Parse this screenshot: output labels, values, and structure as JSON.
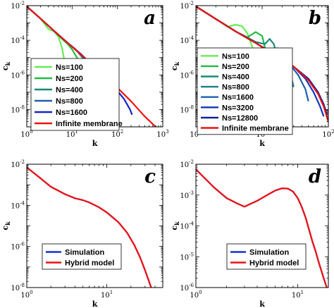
{
  "chart_data": [
    {
      "panel_label": "a",
      "type": "line",
      "xscale": "log",
      "yscale": "log",
      "xlim": [
        1,
        1000
      ],
      "ylim": [
        1e-09,
        0.01
      ],
      "xticks": [
        1,
        10,
        100,
        1000
      ],
      "yticks": [
        1e-08,
        1e-06,
        0.0001,
        0.01
      ],
      "xlabel": "k",
      "ylabel": "c_k",
      "legend_position": "lower-left",
      "series": [
        {
          "name": "Ns=100",
          "color": "#66ee55",
          "points": [
            [
              1,
              0.009
            ],
            [
              2,
              0.0018
            ],
            [
              3,
              0.00045
            ],
            [
              4,
              0.00032
            ],
            [
              5,
              0.00016
            ],
            [
              6,
              3.5e-05
            ],
            [
              7,
              4e-06
            ],
            [
              8,
              6e-07
            ],
            [
              9,
              1e-07
            ]
          ]
        },
        {
          "name": "Ns=200",
          "color": "#22bb44",
          "points": [
            [
              1,
              0.009
            ],
            [
              2,
              0.0018
            ],
            [
              4,
              0.00035
            ],
            [
              6,
              0.00012
            ],
            [
              8,
              6e-05
            ],
            [
              10,
              3e-05
            ],
            [
              13,
              9e-06
            ],
            [
              16,
              2e-06
            ],
            [
              19,
              3e-07
            ],
            [
              22,
              5e-08
            ]
          ]
        },
        {
          "name": "Ns=400",
          "color": "#158a7a",
          "points": [
            [
              1,
              0.009
            ],
            [
              2,
              0.0018
            ],
            [
              4,
              0.00035
            ],
            [
              8,
              7e-05
            ],
            [
              12,
              3e-05
            ],
            [
              18,
              8e-06
            ],
            [
              25,
              2e-06
            ],
            [
              32,
              4e-07
            ],
            [
              40,
              8e-08
            ],
            [
              46,
              2e-08
            ]
          ]
        },
        {
          "name": "Ns=800",
          "color": "#1f5fb0",
          "points": [
            [
              1,
              0.009
            ],
            [
              2,
              0.0018
            ],
            [
              4,
              0.00035
            ],
            [
              8,
              7e-05
            ],
            [
              16,
              1.5e-05
            ],
            [
              30,
              3e-06
            ],
            [
              50,
              5e-07
            ],
            [
              70,
              1e-07
            ],
            [
              90,
              2.5e-08
            ],
            [
              105,
              8e-09
            ]
          ]
        },
        {
          "name": "Ns=1600",
          "color": "#1525c0",
          "points": [
            [
              1,
              0.009
            ],
            [
              2,
              0.0018
            ],
            [
              4,
              0.00035
            ],
            [
              8,
              7e-05
            ],
            [
              16,
              1.5e-05
            ],
            [
              40,
              1.5e-06
            ],
            [
              80,
              2.5e-07
            ],
            [
              140,
              4e-08
            ],
            [
              190,
              1e-08
            ],
            [
              210,
              5e-09
            ]
          ]
        },
        {
          "name": "Infinite membrane",
          "color": "#ee1111",
          "points": [
            [
              1,
              0.009
            ],
            [
              2,
              0.0018
            ],
            [
              4,
              0.00035
            ],
            [
              8,
              7e-05
            ],
            [
              16,
              1.4e-05
            ],
            [
              40,
              1.6e-06
            ],
            [
              100,
              1.8e-07
            ],
            [
              200,
              3e-08
            ],
            [
              400,
              4e-09
            ],
            [
              700,
              1e-09
            ]
          ]
        }
      ]
    },
    {
      "panel_label": "b",
      "type": "line",
      "xscale": "log",
      "yscale": "log",
      "xlim": [
        1,
        100
      ],
      "ylim": [
        1e-09,
        0.01
      ],
      "xticks": [
        1,
        10,
        100
      ],
      "yticks": [
        1e-08,
        1e-06,
        0.0001,
        0.01
      ],
      "xlabel": "k",
      "ylabel": "c_k",
      "legend_position": "lower-left",
      "series": [
        {
          "name": "Ns=100",
          "color": "#66ee55",
          "points": [
            [
              1,
              0.009
            ],
            [
              2,
              0.0017
            ],
            [
              3,
              0.0006
            ],
            [
              4,
              0.0008
            ],
            [
              5,
              0.00065
            ],
            [
              6,
              0.00025
            ],
            [
              7,
              5e-05
            ],
            [
              8,
              5e-06
            ],
            [
              8.8,
              4e-07
            ]
          ]
        },
        {
          "name": "Ns=200",
          "color": "#22bb44",
          "points": [
            [
              1,
              0.009
            ],
            [
              2,
              0.0017
            ],
            [
              4,
              0.00032
            ],
            [
              6,
              0.00015
            ],
            [
              8,
              0.0003
            ],
            [
              10,
              0.00018
            ],
            [
              11,
              4e-05
            ],
            [
              12,
              5e-06
            ],
            [
              13,
              5e-07
            ]
          ]
        },
        {
          "name": "Ns=400",
          "color": "#158a7a",
          "points": [
            [
              1,
              0.009
            ],
            [
              2,
              0.0017
            ],
            [
              4,
              0.00032
            ],
            [
              8,
              8e-05
            ],
            [
              11,
              6e-05
            ],
            [
              13,
              0.00012
            ],
            [
              15,
              6e-05
            ],
            [
              17,
              1e-05
            ],
            [
              19,
              1.5e-06
            ],
            [
              20,
              3e-07
            ]
          ]
        },
        {
          "name": "Ns=800",
          "color": "#1f7a8a",
          "points": [
            [
              1,
              0.009
            ],
            [
              2,
              0.0017
            ],
            [
              4,
              0.00032
            ],
            [
              8,
              7e-05
            ],
            [
              14,
              2e-05
            ],
            [
              17,
              3.5e-05
            ],
            [
              20,
              2.5e-05
            ],
            [
              24,
              6e-06
            ],
            [
              27,
              1e-06
            ],
            [
              30,
              2e-07
            ]
          ]
        },
        {
          "name": "Ns=1600",
          "color": "#1f5fb0",
          "points": [
            [
              1,
              0.009
            ],
            [
              2,
              0.0017
            ],
            [
              4,
              0.00032
            ],
            [
              8,
              7e-05
            ],
            [
              16,
              1.3e-05
            ],
            [
              25,
              5e-06
            ],
            [
              35,
              1e-06
            ],
            [
              45,
              1.5e-07
            ],
            [
              50,
              3e-08
            ]
          ]
        },
        {
          "name": "Ns=3200",
          "color": "#1535b8",
          "points": [
            [
              1,
              0.009
            ],
            [
              2,
              0.0017
            ],
            [
              4,
              0.00032
            ],
            [
              8,
              7e-05
            ],
            [
              16,
              1.3e-05
            ],
            [
              30,
              3e-06
            ],
            [
              45,
              6e-07
            ],
            [
              60,
              1e-07
            ],
            [
              75,
              1.5e-08
            ],
            [
              85,
              4e-09
            ]
          ]
        },
        {
          "name": "Ns=12800",
          "color": "#0b1a99",
          "points": [
            [
              1,
              0.009
            ],
            [
              2,
              0.0017
            ],
            [
              4,
              0.00032
            ],
            [
              8,
              7e-05
            ],
            [
              16,
              1.3e-05
            ],
            [
              30,
              3e-06
            ],
            [
              50,
              6e-07
            ],
            [
              70,
              1e-07
            ],
            [
              85,
              2e-08
            ],
            [
              95,
              5e-09
            ]
          ]
        },
        {
          "name": "Infinite membrane",
          "color": "#ee1111",
          "points": [
            [
              1,
              0.009
            ],
            [
              2,
              0.0017
            ],
            [
              4,
              0.00032
            ],
            [
              8,
              7e-05
            ],
            [
              16,
              1.3e-05
            ],
            [
              30,
              3e-06
            ],
            [
              50,
              5e-07
            ],
            [
              70,
              8e-08
            ],
            [
              85,
              1.5e-08
            ],
            [
              100,
              2e-09
            ]
          ]
        }
      ]
    },
    {
      "panel_label": "c",
      "type": "line",
      "xscale": "log",
      "yscale": "log",
      "xlim": [
        1,
        50
      ],
      "ylim": [
        1e-08,
        0.01
      ],
      "xticks": [
        1,
        10
      ],
      "yticks": [
        1e-08,
        1e-06,
        0.0001,
        0.01
      ],
      "xlabel": "k",
      "ylabel": "c_k",
      "legend_position": "lower-left",
      "series": [
        {
          "name": "Simulation",
          "color": "#1530d0",
          "points": [
            [
              1,
              0.007
            ],
            [
              1.5,
              0.002
            ],
            [
              2,
              0.0008
            ],
            [
              3,
              0.00035
            ],
            [
              4,
              0.00022
            ],
            [
              5,
              0.00018
            ],
            [
              6,
              0.00014
            ],
            [
              8,
              8e-05
            ],
            [
              10,
              4.5e-05
            ],
            [
              14,
              1.5e-05
            ],
            [
              18,
              4.5e-06
            ],
            [
              22,
              1.2e-06
            ],
            [
              26,
              3e-07
            ],
            [
              30,
              7e-08
            ],
            [
              35,
              1.3e-08
            ],
            [
              40,
              3e-09
            ]
          ]
        },
        {
          "name": "Hybrid model",
          "color": "#ee1111",
          "points": [
            [
              1,
              0.007
            ],
            [
              1.5,
              0.002
            ],
            [
              2,
              0.0008
            ],
            [
              3,
              0.00035
            ],
            [
              4,
              0.00022
            ],
            [
              5,
              0.00018
            ],
            [
              6,
              0.00014
            ],
            [
              8,
              8e-05
            ],
            [
              10,
              4.5e-05
            ],
            [
              14,
              1.5e-05
            ],
            [
              18,
              4.5e-06
            ],
            [
              22,
              1.2e-06
            ],
            [
              26,
              3e-07
            ],
            [
              30,
              7e-08
            ],
            [
              35,
              1.3e-08
            ],
            [
              40,
              3e-09
            ]
          ]
        }
      ]
    },
    {
      "panel_label": "d",
      "type": "line",
      "xscale": "log",
      "yscale": "log",
      "xlim": [
        1,
        20
      ],
      "ylim": [
        1e-06,
        0.01
      ],
      "xticks": [
        1,
        10
      ],
      "yticks": [
        1e-06,
        1e-05,
        0.0001,
        0.001,
        0.01
      ],
      "xlabel": "k",
      "ylabel": "c_k",
      "legend_position": "lower-center",
      "series": [
        {
          "name": "Simulation",
          "color": "#1530d0",
          "points": [
            [
              1,
              0.0068
            ],
            [
              1.5,
              0.0018
            ],
            [
              2,
              0.0008
            ],
            [
              2.5,
              0.00055
            ],
            [
              3,
              0.00042
            ],
            [
              4,
              0.00065
            ],
            [
              5,
              0.001
            ],
            [
              6,
              0.0014
            ],
            [
              7,
              0.00165
            ],
            [
              8,
              0.00162
            ],
            [
              9,
              0.0013
            ],
            [
              10,
              0.0008
            ],
            [
              11,
              0.0004
            ],
            [
              12,
              0.00018
            ],
            [
              13,
              7e-05
            ],
            [
              14,
              3e-05
            ],
            [
              15,
              1.5e-05
            ],
            [
              16,
              7e-06
            ],
            [
              18,
              2e-06
            ],
            [
              20,
              7e-07
            ]
          ]
        },
        {
          "name": "Hybrid model",
          "color": "#ee1111",
          "points": [
            [
              1,
              0.0068
            ],
            [
              1.5,
              0.0018
            ],
            [
              2,
              0.0008
            ],
            [
              2.5,
              0.00055
            ],
            [
              3,
              0.00042
            ],
            [
              4,
              0.00065
            ],
            [
              5,
              0.001
            ],
            [
              6,
              0.0014
            ],
            [
              7,
              0.00165
            ],
            [
              8,
              0.00162
            ],
            [
              9,
              0.0013
            ],
            [
              10,
              0.0008
            ],
            [
              11,
              0.0004
            ],
            [
              12,
              0.00018
            ],
            [
              13,
              7e-05
            ],
            [
              14,
              3e-05
            ],
            [
              15,
              1.5e-05
            ],
            [
              16,
              7e-06
            ],
            [
              18,
              2e-06
            ],
            [
              20,
              7e-07
            ]
          ]
        }
      ]
    }
  ]
}
